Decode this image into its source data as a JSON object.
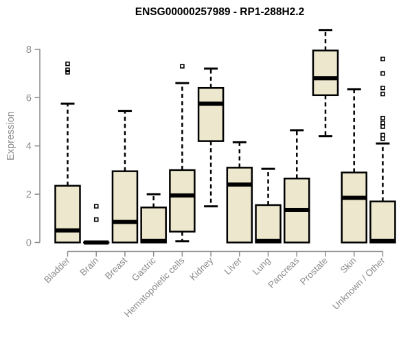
{
  "page": {
    "background": "#ffffff"
  },
  "chart_data": {
    "type": "boxplot",
    "title": "ENSG00000257989 - RP1-288H2.2",
    "ylabel": "Expression",
    "xlabel": "",
    "yticks": [
      0,
      2,
      4,
      6,
      8
    ],
    "ylim": [
      0,
      8.9
    ],
    "grid": false,
    "legend": false,
    "xtick_rotation": 45,
    "colors": {
      "box_fill": "#ece7cd",
      "box_stroke": "#000000",
      "median": "#000000",
      "whisker": "#000000",
      "outlier": "#000000",
      "axis": "#8c8c8c",
      "tick_label": "#8c8c8c",
      "title": "#000000"
    },
    "categories": [
      "Bladder",
      "Brain",
      "Breast",
      "Gastric",
      "Hematopoietic cells",
      "Kidney",
      "Liver",
      "Lung",
      "Pancreas",
      "Prostate",
      "Skin",
      "Unknown / Other"
    ],
    "boxes": [
      {
        "category": "Bladder",
        "whisker_low": 0,
        "q1": 0,
        "median": 0.5,
        "q3": 2.35,
        "whisker_high": 5.75,
        "outliers": [
          7.4,
          7.15,
          7.05
        ]
      },
      {
        "category": "Brain",
        "whisker_low": 0,
        "q1": 0,
        "median": 0,
        "q3": 0,
        "whisker_high": 0,
        "outliers": [
          1.5,
          0.95
        ]
      },
      {
        "category": "Breast",
        "whisker_low": 0,
        "q1": 0,
        "median": 0.85,
        "q3": 2.95,
        "whisker_high": 5.45,
        "outliers": []
      },
      {
        "category": "Gastric",
        "whisker_low": 0,
        "q1": 0,
        "median": 0.07,
        "q3": 1.45,
        "whisker_high": 2.0,
        "outliers": []
      },
      {
        "category": "Hematopoietic cells",
        "whisker_low": 0.05,
        "q1": 0.45,
        "median": 1.95,
        "q3": 3.0,
        "whisker_high": 6.6,
        "outliers": [
          7.3
        ]
      },
      {
        "category": "Kidney",
        "whisker_low": 1.5,
        "q1": 4.2,
        "median": 5.75,
        "q3": 6.4,
        "whisker_high": 7.2,
        "outliers": []
      },
      {
        "category": "Liver",
        "whisker_low": 0,
        "q1": 0,
        "median": 2.4,
        "q3": 3.1,
        "whisker_high": 4.15,
        "outliers": []
      },
      {
        "category": "Lung",
        "whisker_low": 0,
        "q1": 0,
        "median": 0.07,
        "q3": 1.55,
        "whisker_high": 3.05,
        "outliers": []
      },
      {
        "category": "Pancreas",
        "whisker_low": 0,
        "q1": 0,
        "median": 1.35,
        "q3": 2.65,
        "whisker_high": 4.65,
        "outliers": []
      },
      {
        "category": "Prostate",
        "whisker_low": 4.4,
        "q1": 6.1,
        "median": 6.8,
        "q3": 7.95,
        "whisker_high": 8.8,
        "outliers": []
      },
      {
        "category": "Skin",
        "whisker_low": 0,
        "q1": 0,
        "median": 1.85,
        "q3": 2.9,
        "whisker_high": 6.35,
        "outliers": []
      },
      {
        "category": "Unknown / Other",
        "whisker_low": 0,
        "q1": 0,
        "median": 0.07,
        "q3": 1.7,
        "whisker_high": 4.1,
        "outliers": [
          7.6,
          7.0,
          6.4,
          6.15,
          5.15,
          4.95,
          4.8,
          4.45,
          4.3
        ]
      }
    ]
  }
}
